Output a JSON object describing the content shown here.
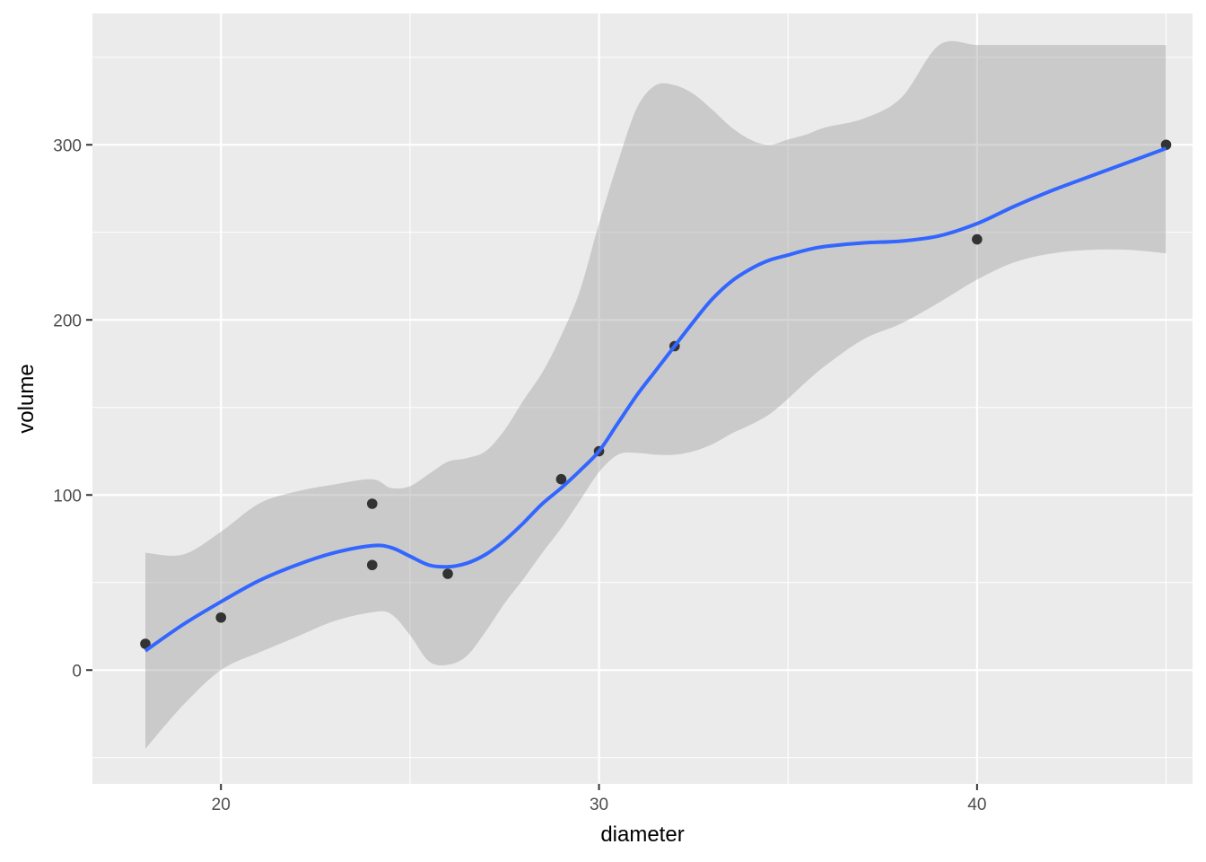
{
  "chart_data": {
    "type": "scatter",
    "title": "",
    "xlabel": "diameter",
    "ylabel": "volume",
    "xlim": [
      16.6,
      45.7
    ],
    "ylim": [
      -65,
      375
    ],
    "x_ticks": [
      20,
      30,
      40
    ],
    "y_ticks": [
      0,
      100,
      200,
      300
    ],
    "x_tick_labels": [
      "20",
      "30",
      "40"
    ],
    "y_tick_labels": [
      "0",
      "100",
      "200",
      "300"
    ],
    "grid": true,
    "legend": "none",
    "points": [
      {
        "x": 18,
        "y": 15
      },
      {
        "x": 20,
        "y": 30
      },
      {
        "x": 24,
        "y": 60
      },
      {
        "x": 24,
        "y": 95
      },
      {
        "x": 26,
        "y": 55
      },
      {
        "x": 29,
        "y": 109
      },
      {
        "x": 30,
        "y": 125
      },
      {
        "x": 32,
        "y": 185
      },
      {
        "x": 40,
        "y": 246
      },
      {
        "x": 45,
        "y": 300
      }
    ],
    "smooth": {
      "method": "loess",
      "x": [
        18,
        19,
        20,
        21,
        22,
        23,
        24,
        24.5,
        25,
        25.5,
        26,
        26.5,
        27,
        27.5,
        28,
        28.5,
        29,
        29.5,
        30,
        30.5,
        31,
        31.5,
        32,
        32.5,
        33,
        33.5,
        34,
        34.5,
        35,
        35.5,
        36,
        37,
        38,
        39,
        40,
        41,
        42,
        43,
        44,
        45
      ],
      "y": [
        11,
        26,
        39,
        51,
        60,
        67,
        71,
        70,
        65,
        60,
        59,
        61,
        66,
        74,
        84,
        95,
        104,
        114,
        125,
        141,
        157,
        171,
        185,
        199,
        212,
        222,
        229,
        234,
        237,
        240,
        242,
        244,
        245,
        248,
        255,
        265,
        274,
        282,
        290,
        298
      ],
      "lower": [
        -45,
        -20,
        0,
        10,
        19,
        28,
        33,
        32,
        20,
        5,
        3,
        8,
        22,
        38,
        52,
        67,
        81,
        97,
        113,
        123,
        124,
        123,
        123,
        125,
        129,
        135,
        140,
        146,
        155,
        165,
        174,
        189,
        198,
        210,
        223,
        233,
        238,
        240,
        240,
        238
      ],
      "upper": [
        67,
        66,
        79,
        95,
        102,
        106,
        109,
        104,
        105,
        112,
        119,
        121,
        125,
        137,
        154,
        170,
        191,
        217,
        255,
        290,
        321,
        334,
        334,
        329,
        320,
        310,
        303,
        300,
        303,
        306,
        310,
        315,
        327,
        357,
        357,
        357,
        357,
        357,
        357,
        357
      ],
      "color": "#3366ff",
      "band_color": "#999999"
    },
    "panel_color": "#ebebeb",
    "point_color": "#333333"
  }
}
